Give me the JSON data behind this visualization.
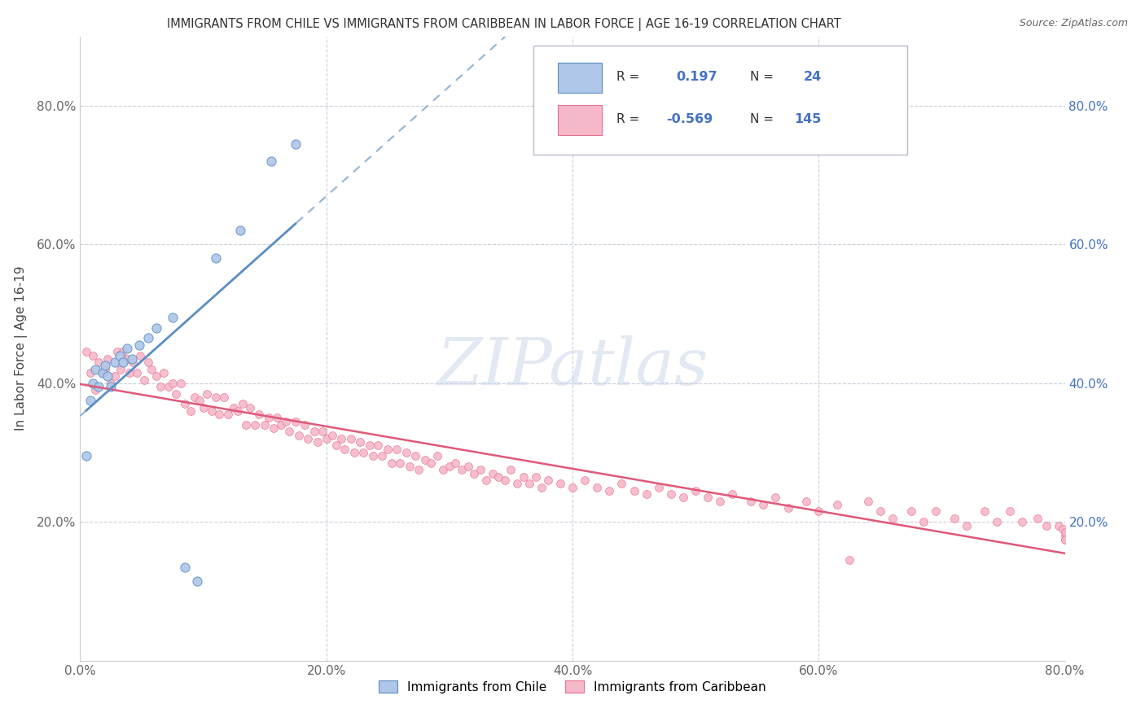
{
  "title": "IMMIGRANTS FROM CHILE VS IMMIGRANTS FROM CARIBBEAN IN LABOR FORCE | AGE 16-19 CORRELATION CHART",
  "source_text": "Source: ZipAtlas.com",
  "ylabel": "In Labor Force | Age 16-19",
  "legend_entries": [
    "Immigrants from Chile",
    "Immigrants from Caribbean"
  ],
  "r_chile": 0.197,
  "n_chile": 24,
  "r_caribbean": -0.569,
  "n_caribbean": 145,
  "chile_color": "#aec6e8",
  "chile_edge_color": "#5b8ec4",
  "caribbean_color": "#f5b8c8",
  "caribbean_edge_color": "#e87090",
  "chile_trend_color": "#5b8ec4",
  "chile_trend_dash_color": "#90b4d8",
  "caribbean_trend_color": "#e05878",
  "xlim": [
    0.0,
    0.8
  ],
  "ylim": [
    0.0,
    0.9
  ],
  "xtick_labels": [
    "0.0%",
    "20.0%",
    "40.0%",
    "60.0%",
    "80.0%"
  ],
  "xtick_vals": [
    0.0,
    0.2,
    0.4,
    0.6,
    0.8
  ],
  "ytick_labels": [
    "20.0%",
    "40.0%",
    "60.0%",
    "80.0%"
  ],
  "ytick_vals": [
    0.2,
    0.4,
    0.6,
    0.8
  ],
  "chile_x": [
    0.005,
    0.008,
    0.01,
    0.012,
    0.015,
    0.018,
    0.02,
    0.022,
    0.025,
    0.028,
    0.032,
    0.035,
    0.038,
    0.042,
    0.048,
    0.055,
    0.062,
    0.075,
    0.085,
    0.095,
    0.11,
    0.13,
    0.155,
    0.175
  ],
  "chile_y": [
    0.295,
    0.375,
    0.4,
    0.42,
    0.395,
    0.415,
    0.425,
    0.41,
    0.395,
    0.43,
    0.44,
    0.43,
    0.45,
    0.435,
    0.455,
    0.465,
    0.48,
    0.495,
    0.135,
    0.115,
    0.58,
    0.62,
    0.72,
    0.745
  ],
  "carib_x": [
    0.005,
    0.008,
    0.01,
    0.012,
    0.015,
    0.018,
    0.02,
    0.022,
    0.025,
    0.028,
    0.03,
    0.033,
    0.035,
    0.038,
    0.04,
    0.043,
    0.046,
    0.049,
    0.052,
    0.055,
    0.058,
    0.062,
    0.065,
    0.068,
    0.072,
    0.075,
    0.078,
    0.082,
    0.085,
    0.09,
    0.093,
    0.097,
    0.1,
    0.103,
    0.107,
    0.11,
    0.113,
    0.117,
    0.12,
    0.125,
    0.128,
    0.132,
    0.135,
    0.138,
    0.142,
    0.145,
    0.15,
    0.153,
    0.157,
    0.16,
    0.163,
    0.167,
    0.17,
    0.175,
    0.178,
    0.182,
    0.185,
    0.19,
    0.193,
    0.197,
    0.2,
    0.205,
    0.208,
    0.212,
    0.215,
    0.22,
    0.223,
    0.227,
    0.23,
    0.235,
    0.238,
    0.242,
    0.245,
    0.25,
    0.253,
    0.257,
    0.26,
    0.265,
    0.268,
    0.272,
    0.275,
    0.28,
    0.285,
    0.29,
    0.295,
    0.3,
    0.305,
    0.31,
    0.315,
    0.32,
    0.325,
    0.33,
    0.335,
    0.34,
    0.345,
    0.35,
    0.355,
    0.36,
    0.365,
    0.37,
    0.375,
    0.38,
    0.39,
    0.4,
    0.41,
    0.42,
    0.43,
    0.44,
    0.45,
    0.46,
    0.47,
    0.48,
    0.49,
    0.5,
    0.51,
    0.52,
    0.53,
    0.545,
    0.555,
    0.565,
    0.575,
    0.59,
    0.6,
    0.615,
    0.625,
    0.64,
    0.65,
    0.66,
    0.675,
    0.685,
    0.695,
    0.71,
    0.72,
    0.735,
    0.745,
    0.755,
    0.765,
    0.778,
    0.785,
    0.795,
    0.798,
    0.8,
    0.8,
    0.8,
    0.8
  ],
  "carib_y": [
    0.445,
    0.415,
    0.44,
    0.39,
    0.43,
    0.415,
    0.42,
    0.435,
    0.4,
    0.41,
    0.445,
    0.42,
    0.445,
    0.435,
    0.415,
    0.43,
    0.415,
    0.44,
    0.405,
    0.43,
    0.42,
    0.41,
    0.395,
    0.415,
    0.395,
    0.4,
    0.385,
    0.4,
    0.37,
    0.36,
    0.38,
    0.375,
    0.365,
    0.385,
    0.36,
    0.38,
    0.355,
    0.38,
    0.355,
    0.365,
    0.36,
    0.37,
    0.34,
    0.365,
    0.34,
    0.355,
    0.34,
    0.35,
    0.335,
    0.35,
    0.34,
    0.345,
    0.33,
    0.345,
    0.325,
    0.34,
    0.32,
    0.33,
    0.315,
    0.33,
    0.32,
    0.325,
    0.31,
    0.32,
    0.305,
    0.32,
    0.3,
    0.315,
    0.3,
    0.31,
    0.295,
    0.31,
    0.295,
    0.305,
    0.285,
    0.305,
    0.285,
    0.3,
    0.28,
    0.295,
    0.275,
    0.29,
    0.285,
    0.295,
    0.275,
    0.28,
    0.285,
    0.275,
    0.28,
    0.27,
    0.275,
    0.26,
    0.27,
    0.265,
    0.26,
    0.275,
    0.255,
    0.265,
    0.255,
    0.265,
    0.25,
    0.26,
    0.255,
    0.25,
    0.26,
    0.25,
    0.245,
    0.255,
    0.245,
    0.24,
    0.25,
    0.24,
    0.235,
    0.245,
    0.235,
    0.23,
    0.24,
    0.23,
    0.225,
    0.235,
    0.22,
    0.23,
    0.215,
    0.225,
    0.145,
    0.23,
    0.215,
    0.205,
    0.215,
    0.2,
    0.215,
    0.205,
    0.195,
    0.215,
    0.2,
    0.215,
    0.2,
    0.205,
    0.195,
    0.195,
    0.19,
    0.175,
    0.18,
    0.185,
    0.175
  ]
}
